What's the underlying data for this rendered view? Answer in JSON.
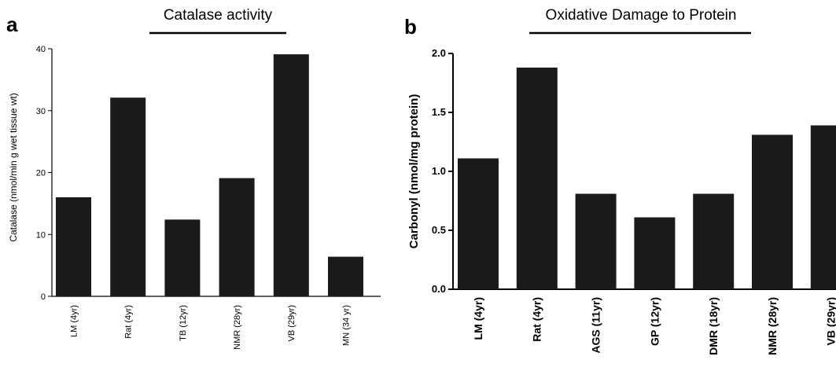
{
  "panels": [
    {
      "letter": "a",
      "chart_data": {
        "type": "bar",
        "title": "Catalase activity",
        "ylabel": "Catalase (nmol/min g wet tissue wt)",
        "xlabel": "",
        "categories": [
          "LM (4yr)",
          "Rat (4yr)",
          "TB (12yr)",
          "NMR (28yr)",
          "VB (29yr)",
          "MN (34 yr)"
        ],
        "values": [
          16,
          32.1,
          12.4,
          19.1,
          39.1,
          6.4
        ],
        "ylim": [
          0,
          40
        ],
        "yticks": [
          "0",
          "10",
          "20",
          "30",
          "40"
        ],
        "bar_color": "#1a1a1a",
        "grid": false
      }
    },
    {
      "letter": "b",
      "chart_data": {
        "type": "bar",
        "title": "Oxidative Damage to Protein",
        "ylabel": "Carbonyl (nmol/mg protein)",
        "xlabel": "",
        "categories": [
          "LM (4yr)",
          "Rat (4yr)",
          "AGS (11yr)",
          "GP (12yr)",
          "DMR (18yr)",
          "NMR (28yr)",
          "VB (29yr)"
        ],
        "values": [
          1.11,
          1.88,
          0.81,
          0.61,
          0.81,
          1.31,
          1.39
        ],
        "ylim": [
          0,
          2.0
        ],
        "yticks": [
          "0.0",
          "0.5",
          "1.0",
          "1.5",
          "2.0"
        ],
        "bar_color": "#1a1a1a",
        "grid": false
      }
    }
  ]
}
